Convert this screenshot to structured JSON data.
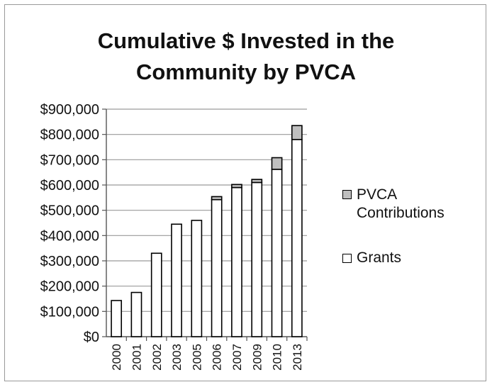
{
  "chart_data": {
    "type": "bar",
    "stacked": true,
    "title_lines": [
      "Cumulative $ Invested in the",
      "Community by PVCA"
    ],
    "categories": [
      "2000",
      "2001",
      "2002",
      "2003",
      "2005",
      "2006",
      "2007",
      "2009",
      "2010",
      "2013"
    ],
    "series": [
      {
        "name": "Grants",
        "color": "#ffffff",
        "values": [
          143000,
          175000,
          330000,
          445000,
          460000,
          542000,
          590000,
          610000,
          662000,
          780000
        ]
      },
      {
        "name": "PVCA Contributions",
        "color": "#bfbfbf",
        "values": [
          0,
          0,
          0,
          0,
          0,
          12000,
          12000,
          12000,
          46000,
          55000
        ]
      }
    ],
    "ylim": [
      0,
      900000
    ],
    "yticks": [
      0,
      100000,
      200000,
      300000,
      400000,
      500000,
      600000,
      700000,
      800000,
      900000
    ],
    "ytick_labels": [
      "$0",
      "$100,000",
      "$200,000",
      "$300,000",
      "$400,000",
      "$500,000",
      "$600,000",
      "$700,000",
      "$800,000",
      "$900,000"
    ],
    "grid": true,
    "legend_position": "right",
    "legend": [
      "PVCA Contributions",
      "Grants"
    ],
    "xlabel": "",
    "ylabel": ""
  }
}
